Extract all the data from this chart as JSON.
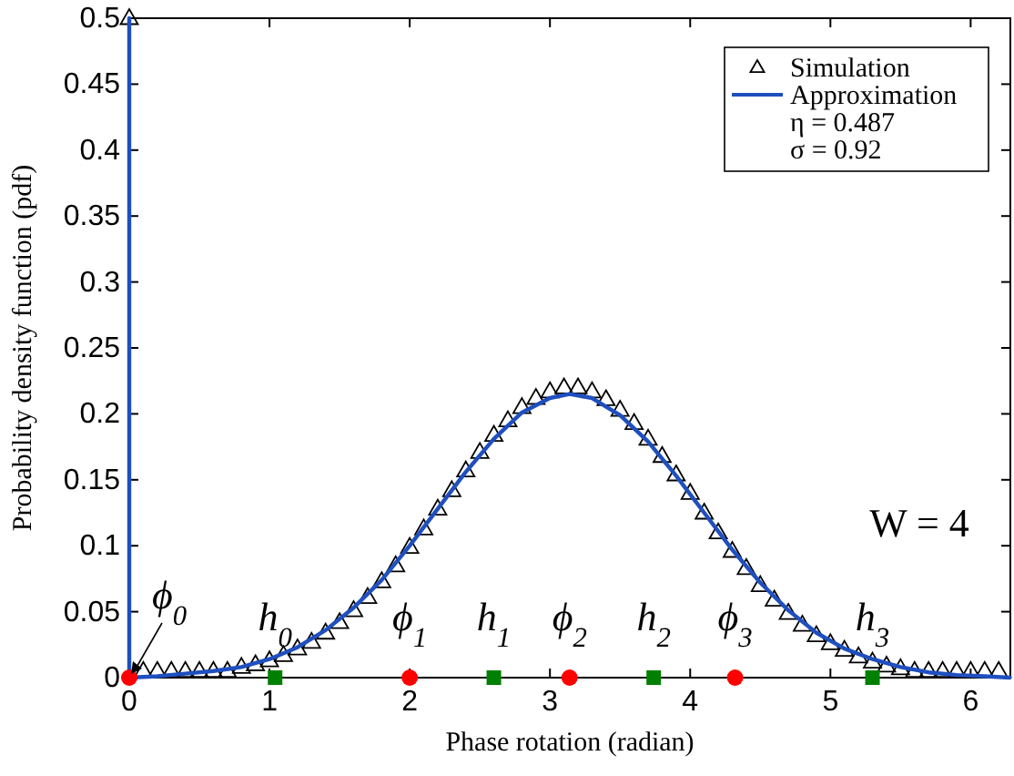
{
  "chart_data": {
    "type": "scatter",
    "xlabel": "Phase rotation (radian)",
    "ylabel": "Probability density function (pdf)",
    "xlim": [
      0,
      6.2832
    ],
    "ylim": [
      0,
      0.5
    ],
    "xticks": [
      0,
      1,
      2,
      3,
      4,
      5,
      6
    ],
    "yticks": [
      0,
      0.05,
      0.1,
      0.15,
      0.2,
      0.25,
      0.3,
      0.35,
      0.4,
      0.45,
      0.5
    ],
    "grid": false,
    "legend": "top right",
    "series": [
      {
        "name": "Simulation",
        "marker": "triangle",
        "color": "#000000",
        "x": [
          0,
          0.1,
          0.2,
          0.3,
          0.4,
          0.5,
          0.6,
          0.7,
          0.8,
          0.9,
          1.0,
          1.1,
          1.2,
          1.3,
          1.4,
          1.5,
          1.6,
          1.7,
          1.8,
          1.9,
          2.0,
          2.1,
          2.2,
          2.3,
          2.4,
          2.5,
          2.6,
          2.7,
          2.8,
          2.9,
          3.0,
          3.1,
          3.2,
          3.3,
          3.4,
          3.5,
          3.6,
          3.7,
          3.8,
          3.9,
          4.0,
          4.1,
          4.2,
          4.3,
          4.4,
          4.5,
          4.6,
          4.7,
          4.8,
          4.9,
          5.0,
          5.1,
          5.2,
          5.3,
          5.4,
          5.5,
          5.6,
          5.7,
          5.8,
          5.9,
          6.0,
          6.1,
          6.2
        ],
        "values": [
          0.5,
          0.005,
          0.005,
          0.005,
          0.005,
          0.005,
          0.005,
          0.005,
          0.008,
          0.01,
          0.013,
          0.017,
          0.022,
          0.027,
          0.034,
          0.042,
          0.051,
          0.061,
          0.073,
          0.085,
          0.099,
          0.113,
          0.128,
          0.142,
          0.157,
          0.171,
          0.184,
          0.195,
          0.205,
          0.212,
          0.217,
          0.22,
          0.22,
          0.217,
          0.211,
          0.203,
          0.193,
          0.181,
          0.168,
          0.154,
          0.14,
          0.125,
          0.11,
          0.096,
          0.083,
          0.07,
          0.059,
          0.049,
          0.04,
          0.032,
          0.026,
          0.021,
          0.016,
          0.012,
          0.009,
          0.007,
          0.005,
          0.005,
          0.005,
          0.005,
          0.005,
          0.005,
          0.005
        ]
      },
      {
        "name": "Approximation",
        "type": "line",
        "marker": "none",
        "line_style": "solid",
        "color": "#1f4fbf",
        "x": [
          0,
          0,
          0.2,
          0.4,
          0.6,
          0.8,
          1.0,
          1.2,
          1.4,
          1.6,
          1.8,
          2.0,
          2.2,
          2.4,
          2.6,
          2.8,
          3.0,
          3.14,
          3.3,
          3.5,
          3.7,
          3.9,
          4.1,
          4.3,
          4.5,
          4.7,
          4.9,
          5.1,
          5.3,
          5.5,
          5.7,
          5.9,
          6.1,
          6.28
        ],
        "values": [
          0.5,
          0,
          0.001,
          0.003,
          0.005,
          0.008,
          0.014,
          0.023,
          0.036,
          0.053,
          0.074,
          0.1,
          0.128,
          0.156,
          0.181,
          0.201,
          0.212,
          0.215,
          0.212,
          0.199,
          0.179,
          0.153,
          0.125,
          0.097,
          0.072,
          0.051,
          0.034,
          0.022,
          0.014,
          0.008,
          0.004,
          0.002,
          0.001,
          0
        ]
      },
      {
        "marker": "circle",
        "color": "#ff0000",
        "x": [
          0,
          2,
          3.14,
          4.32
        ],
        "values": [
          0,
          0,
          0,
          0
        ]
      },
      {
        "marker": "square",
        "color": "#008000",
        "x": [
          1.04,
          2.6,
          3.74,
          5.3
        ],
        "values": [
          0,
          0,
          0,
          0
        ]
      }
    ],
    "annotations": [
      "η = 0.487",
      "σ = 0.92",
      "W = 4",
      {
        "text": "ϕ$_{0}$",
        "x": 0,
        "y": 0
      },
      {
        "text": "h$_{0}$",
        "x": 1.04,
        "y": 0
      },
      {
        "text": "ϕ$_{1}$",
        "x": 2,
        "y": 0
      },
      {
        "text": "h$_{1}$",
        "x": 2.6,
        "y": 0
      },
      {
        "text": "ϕ$_{2}$",
        "x": 3.14,
        "y": 0
      },
      {
        "text": "h$_{2}$",
        "x": 3.74,
        "y": 0
      },
      {
        "text": "ϕ$_{3}$",
        "x": 4.32,
        "y": 0
      },
      {
        "text": "h$_{3}$",
        "x": 5.3,
        "y": 0
      }
    ]
  }
}
